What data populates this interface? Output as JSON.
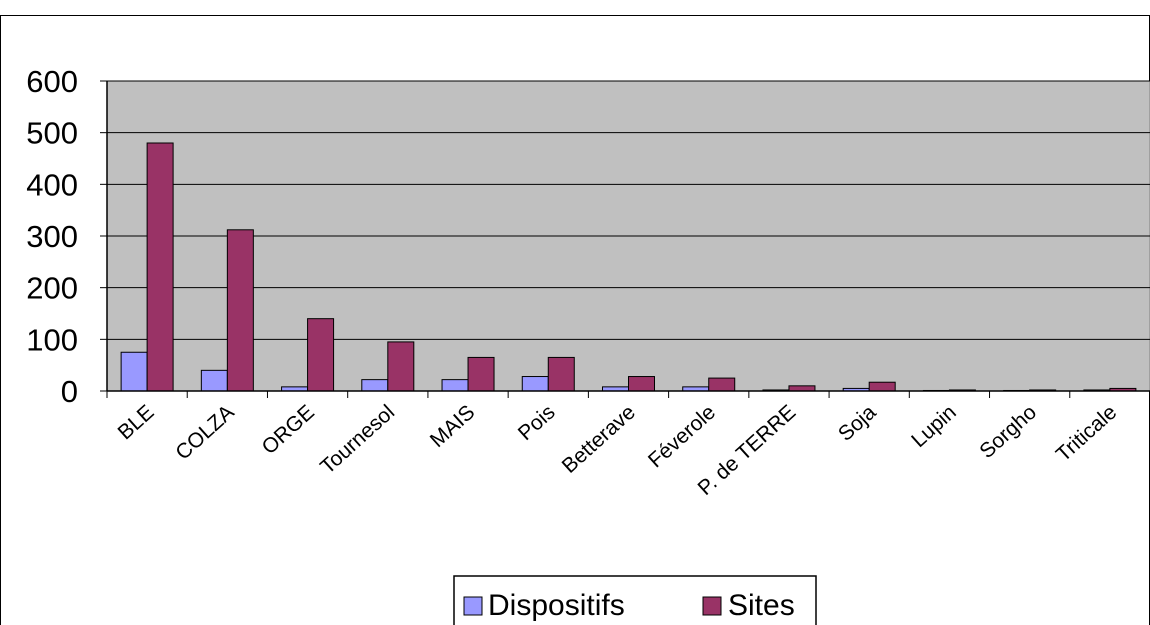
{
  "chart_data": {
    "type": "bar",
    "title": "",
    "xlabel": "",
    "ylabel": "",
    "ylim": [
      0,
      600
    ],
    "yticks": [
      0,
      100,
      200,
      300,
      400,
      500,
      600
    ],
    "grid": true,
    "legend_position": "bottom",
    "categories": [
      "BLE",
      "COLZA",
      "ORGE",
      "Tournesol",
      "MAIS",
      "Pois",
      "Betterave",
      "Féverole",
      "P. de TERRE",
      "Soja",
      "Lupin",
      "Sorgho",
      "Triticale"
    ],
    "series": [
      {
        "name": "Dispositifs",
        "color": "#9999ff",
        "values": [
          75,
          40,
          8,
          22,
          22,
          28,
          8,
          8,
          2,
          5,
          1,
          1,
          2
        ]
      },
      {
        "name": "Sites",
        "color": "#993366",
        "values": [
          480,
          312,
          140,
          95,
          65,
          65,
          28,
          25,
          10,
          17,
          2,
          2,
          5
        ]
      }
    ],
    "plot_background": "#c0c0c0"
  }
}
